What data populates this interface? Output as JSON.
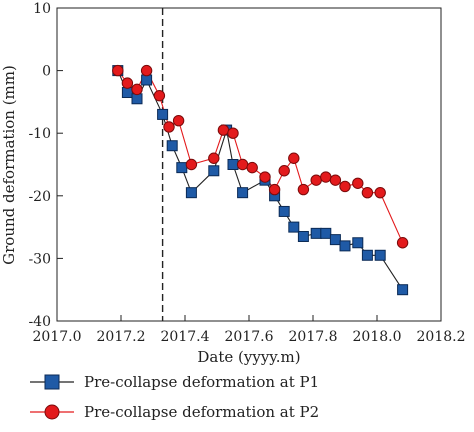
{
  "chart_data": {
    "type": "line",
    "xlabel": "Date (yyyy.m)",
    "ylabel": "Ground deformation (mm)",
    "xlim": [
      2017.0,
      2018.2
    ],
    "ylim": [
      -40,
      10
    ],
    "x_ticks": [
      "2017.0",
      "2017.2",
      "2017.4",
      "2017.6",
      "2017.8",
      "2018.0",
      "2018.2"
    ],
    "y_ticks": [
      "10",
      "0",
      "-10",
      "-20",
      "-30",
      "-40"
    ],
    "x_tick_values": [
      2017.0,
      2017.2,
      2017.4,
      2017.6,
      2017.8,
      2018.0,
      2018.2
    ],
    "y_tick_values": [
      10,
      0,
      -10,
      -20,
      -30,
      -40
    ],
    "vertical_reference_line": {
      "x": 2017.33,
      "style": "dashed",
      "color": "#222222"
    },
    "legend_position": "bottom-left",
    "grid": false,
    "series": [
      {
        "name": "Pre-collapse deformation at P1",
        "marker": "square",
        "color": "#1f5aa6",
        "x": [
          2017.19,
          2017.22,
          2017.25,
          2017.28,
          2017.33,
          2017.36,
          2017.39,
          2017.42,
          2017.49,
          2017.53,
          2017.55,
          2017.58,
          2017.65,
          2017.68,
          2017.71,
          2017.74,
          2017.77,
          2017.81,
          2017.84,
          2017.87,
          2017.9,
          2017.94,
          2017.97,
          2018.01,
          2018.08
        ],
        "y": [
          0,
          -3.5,
          -4.5,
          -1.5,
          -7,
          -12,
          -15.5,
          -19.5,
          -16,
          -9.5,
          -15,
          -19.5,
          -17.5,
          -20,
          -22.5,
          -25,
          -26.5,
          -26,
          -26,
          -27,
          -28,
          -27.5,
          -29.5,
          -29.5,
          -35
        ]
      },
      {
        "name": "Pre-collapse deformation at P2",
        "marker": "circle",
        "color": "#e31a1c",
        "x": [
          2017.19,
          2017.22,
          2017.25,
          2017.28,
          2017.32,
          2017.35,
          2017.38,
          2017.42,
          2017.49,
          2017.52,
          2017.55,
          2017.58,
          2017.61,
          2017.65,
          2017.68,
          2017.71,
          2017.74,
          2017.77,
          2017.81,
          2017.84,
          2017.87,
          2017.9,
          2017.94,
          2017.97,
          2018.01,
          2018.08
        ],
        "y": [
          0,
          -2,
          -3,
          0,
          -4,
          -9,
          -8,
          -15,
          -14,
          -9.5,
          -10,
          -15,
          -15.5,
          -17,
          -19,
          -16,
          -14,
          -19,
          -17.5,
          -17,
          -17.5,
          -18.5,
          -18,
          -19.5,
          -19.5,
          -27.5
        ]
      }
    ]
  }
}
